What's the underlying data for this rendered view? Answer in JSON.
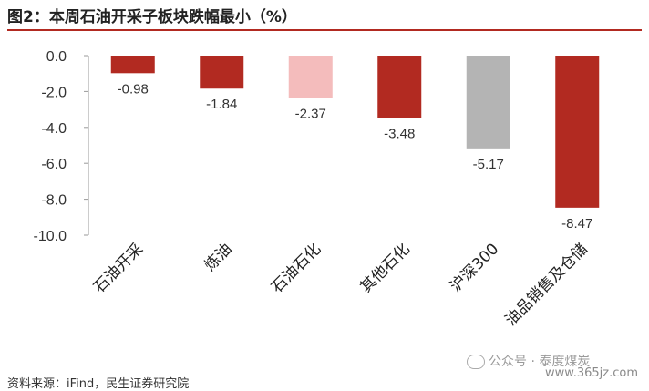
{
  "title": "图2：本周石油开采子板块跌幅最小（%）",
  "source": "资料来源：iFind，民生证券研究院",
  "watermark": "公众号 · 泰度煤炭",
  "watermark_url": "www.365jz.com",
  "chart_data": {
    "type": "bar",
    "categories": [
      "石油开采",
      "炼油",
      "石油石化",
      "其他石化",
      "沪深300",
      "油品销售及仓储"
    ],
    "values": [
      -0.98,
      -1.84,
      -2.37,
      -3.48,
      -5.17,
      -8.47
    ],
    "data_labels": [
      "-0.98",
      "-1.84",
      "-2.37",
      "-3.48",
      "-5.17",
      "-8.47"
    ],
    "bar_colors": [
      "#b22a21",
      "#b22a21",
      "#f4bcbc",
      "#b22a21",
      "#b4b4b4",
      "#b22a21"
    ],
    "ylim": [
      -10,
      0
    ],
    "yticks": [
      "0.0",
      "-2.0",
      "-4.0",
      "-6.0",
      "-8.0",
      "-10.0"
    ],
    "ytick_values": [
      0,
      -2,
      -4,
      -6,
      -8,
      -10
    ],
    "xlabel": "",
    "ylabel": "",
    "grid": false,
    "legend": "none"
  }
}
